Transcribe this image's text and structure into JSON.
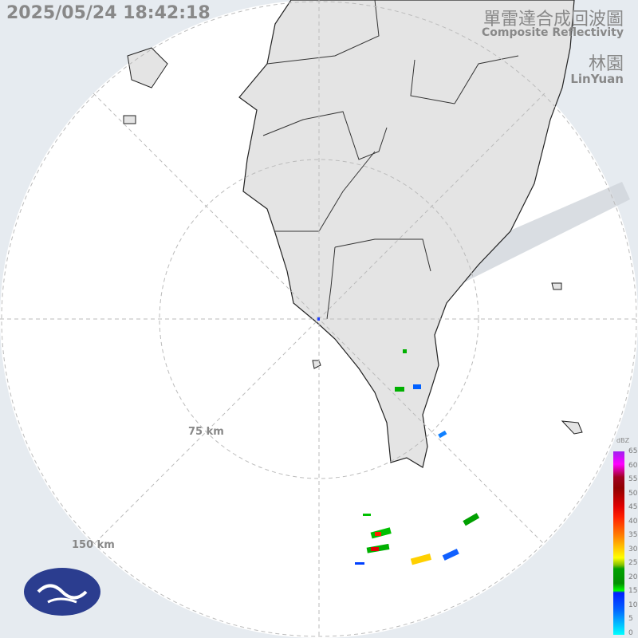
{
  "timestamp": "2025/05/24 18:42:18",
  "title_zh": "單雷達合成回波圖",
  "title_en": "Composite Reflectivity",
  "station_zh": "林園",
  "station_en": "LinYuan",
  "range_labels": [
    "75 km",
    "150 km"
  ],
  "legend": {
    "unit": "dBZ",
    "ticks": [
      "65",
      "60",
      "55",
      "50",
      "45",
      "40",
      "35",
      "30",
      "25",
      "20",
      "15",
      "10",
      "5",
      "0"
    ]
  },
  "colors": {
    "land": "#e4e4e4",
    "sea_inside": "#ffffff",
    "outside": "#e6ebf0",
    "blocked": "#c9ced4",
    "logo": "#2b3d8f"
  },
  "logo_icon": "cwa-logo-icon"
}
